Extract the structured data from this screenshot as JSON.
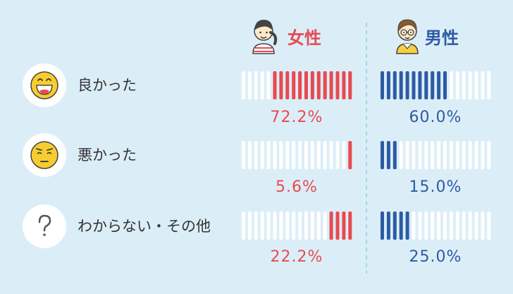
{
  "colors": {
    "background": "#dbeef8",
    "female": "#e84a50",
    "male": "#2d5ba4",
    "inactive": "#ffffff",
    "divider": "#a9d3ea"
  },
  "icons": {
    "female": "girl-avatar-icon",
    "male": "boy-with-glasses-avatar-icon",
    "good": "big-grin-emoji-icon",
    "bad": "worried-emoji-icon",
    "unknown": "question-mark-icon"
  },
  "chart_data": {
    "type": "bar",
    "segments_per_bar": 18,
    "categories": [
      "良かった",
      "悪かった",
      "わからない・その他"
    ],
    "series": [
      {
        "name": "女性",
        "values": [
          72.2,
          5.6,
          22.2
        ],
        "labels": [
          "72.2%",
          "5.6%",
          "22.2%"
        ]
      },
      {
        "name": "男性",
        "values": [
          60.0,
          15.0,
          25.0
        ],
        "labels": [
          "60.0%",
          "15.0%",
          "25.0%"
        ]
      }
    ]
  }
}
